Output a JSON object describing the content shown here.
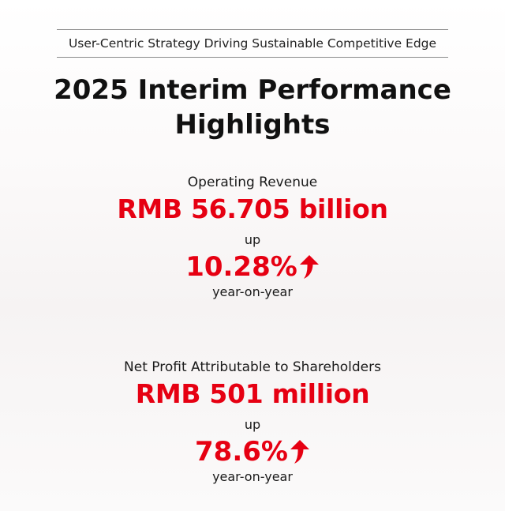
{
  "header": {
    "tagline": "User-Centric Strategy Driving Sustainable Competitive Edge",
    "title_line1": "2025 Interim Performance",
    "title_line2": "Highlights"
  },
  "metrics": [
    {
      "label": "Operating Revenue",
      "value": "RMB 56.705 billion",
      "direction": "up",
      "change": "10.28%",
      "period": "year-on-year",
      "arrow_icon": "arrow-up-icon"
    },
    {
      "label": "Net Profit Attributable to Shareholders",
      "value": "RMB 501 million",
      "direction": "up",
      "change": "78.6%",
      "period": "year-on-year",
      "arrow_icon": "arrow-up-icon"
    }
  ],
  "colors": {
    "accent": "#e60012",
    "text": "#111111",
    "rule": "#8a8a8a"
  }
}
